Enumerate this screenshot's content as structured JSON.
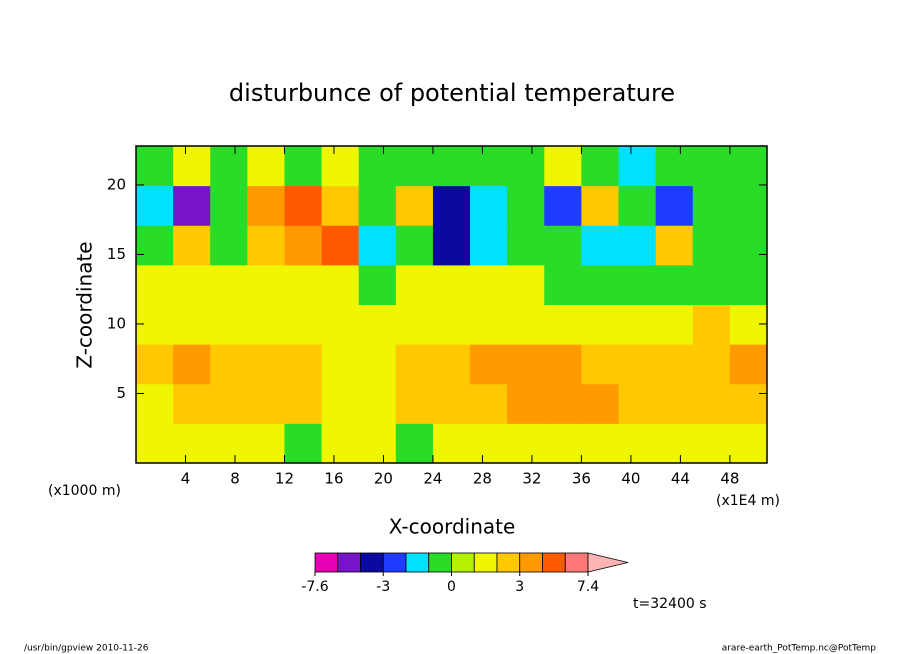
{
  "chart_data": {
    "type": "contour",
    "title": "disturbunce of potential temperature",
    "xlabel": "X-coordinate",
    "ylabel": "Z-coordinate",
    "x_unit_left": "(x1000 m)",
    "x_unit_right": "(x1E4 m)",
    "time_label": "t=32400 s",
    "footer_left": "/usr/bin/gpview  2010-11-26",
    "footer_right": "arare-earth_PotTemp.nc@PotTemp",
    "xlim": [
      0,
      51
    ],
    "ylim": [
      0,
      22.8
    ],
    "xticks": [
      4,
      8,
      12,
      16,
      20,
      24,
      28,
      32,
      36,
      40,
      44,
      48
    ],
    "yticks": [
      5,
      10,
      15,
      20
    ],
    "x": [
      1.5,
      4.5,
      7.5,
      10.5,
      13.5,
      16.5,
      19.5,
      22.5,
      25.5,
      28.5,
      31.5,
      34.5,
      37.5,
      40.5,
      43.5,
      46.5,
      49.5
    ],
    "y": [
      1.425,
      4.275,
      7.125,
      9.975,
      12.825,
      15.675,
      18.525,
      21.375
    ],
    "z": [
      [
        1.5,
        1.5,
        1.5,
        1.5,
        -0.5,
        1.5,
        1.5,
        -0.5,
        1.5,
        1.5,
        1.5,
        1.5,
        1.5,
        1.5,
        1.5,
        1.5,
        1.5
      ],
      [
        1.5,
        2.5,
        2.5,
        2.5,
        2.5,
        1.5,
        1.5,
        2.5,
        2.5,
        2.5,
        3.5,
        3.5,
        3.5,
        2.5,
        2.5,
        2.5,
        2.5
      ],
      [
        2.5,
        3.5,
        2.5,
        2.5,
        2.5,
        1.5,
        1.5,
        2.5,
        2.5,
        3.5,
        3.5,
        3.5,
        2.5,
        2.5,
        2.5,
        2.5,
        3.5
      ],
      [
        1.5,
        1.5,
        1.5,
        1.5,
        1.5,
        1.5,
        1.5,
        1.5,
        1.5,
        1.5,
        1.5,
        1.5,
        1.5,
        1.5,
        1.5,
        2.5,
        1.5
      ],
      [
        1.5,
        1.5,
        1.5,
        1.5,
        1.5,
        1.5,
        -0.5,
        1.5,
        1.5,
        1.5,
        1.5,
        -0.5,
        -0.5,
        -0.5,
        -0.5,
        -0.5,
        -0.5
      ],
      [
        -0.5,
        2.5,
        -0.5,
        2.5,
        3.5,
        4.5,
        -1.5,
        -0.5,
        -3.5,
        -1.5,
        -0.5,
        -0.5,
        -1.5,
        -1.5,
        2.5,
        -0.5,
        -0.5
      ],
      [
        -1.5,
        -4.5,
        -0.5,
        3.5,
        4.5,
        2.5,
        -0.5,
        2.5,
        -3.5,
        -1.5,
        -0.5,
        -2.5,
        2.5,
        -0.5,
        -2.5,
        -0.5,
        -0.5
      ],
      [
        -0.5,
        1.5,
        -0.5,
        1.5,
        -0.5,
        1.5,
        -0.5,
        -0.5,
        -0.5,
        -0.5,
        -0.5,
        1.5,
        -0.5,
        -1.5,
        -0.5,
        -0.5,
        -0.5
      ]
    ],
    "colorbar": {
      "levels": [
        -7.6,
        -5,
        -4,
        -3,
        -2,
        -1,
        0,
        1,
        2,
        3,
        4,
        5,
        7.4
      ],
      "colors": [
        "#e600b4",
        "#7814c8",
        "#0a0aa0",
        "#1e3cff",
        "#00e0ff",
        "#28dc28",
        "#b4f000",
        "#f0f500",
        "#ffc800",
        "#ff9a00",
        "#ff5a00",
        "#ff7878"
      ],
      "ticks": [
        -7.6,
        -3,
        0,
        3,
        7.4
      ]
    }
  }
}
